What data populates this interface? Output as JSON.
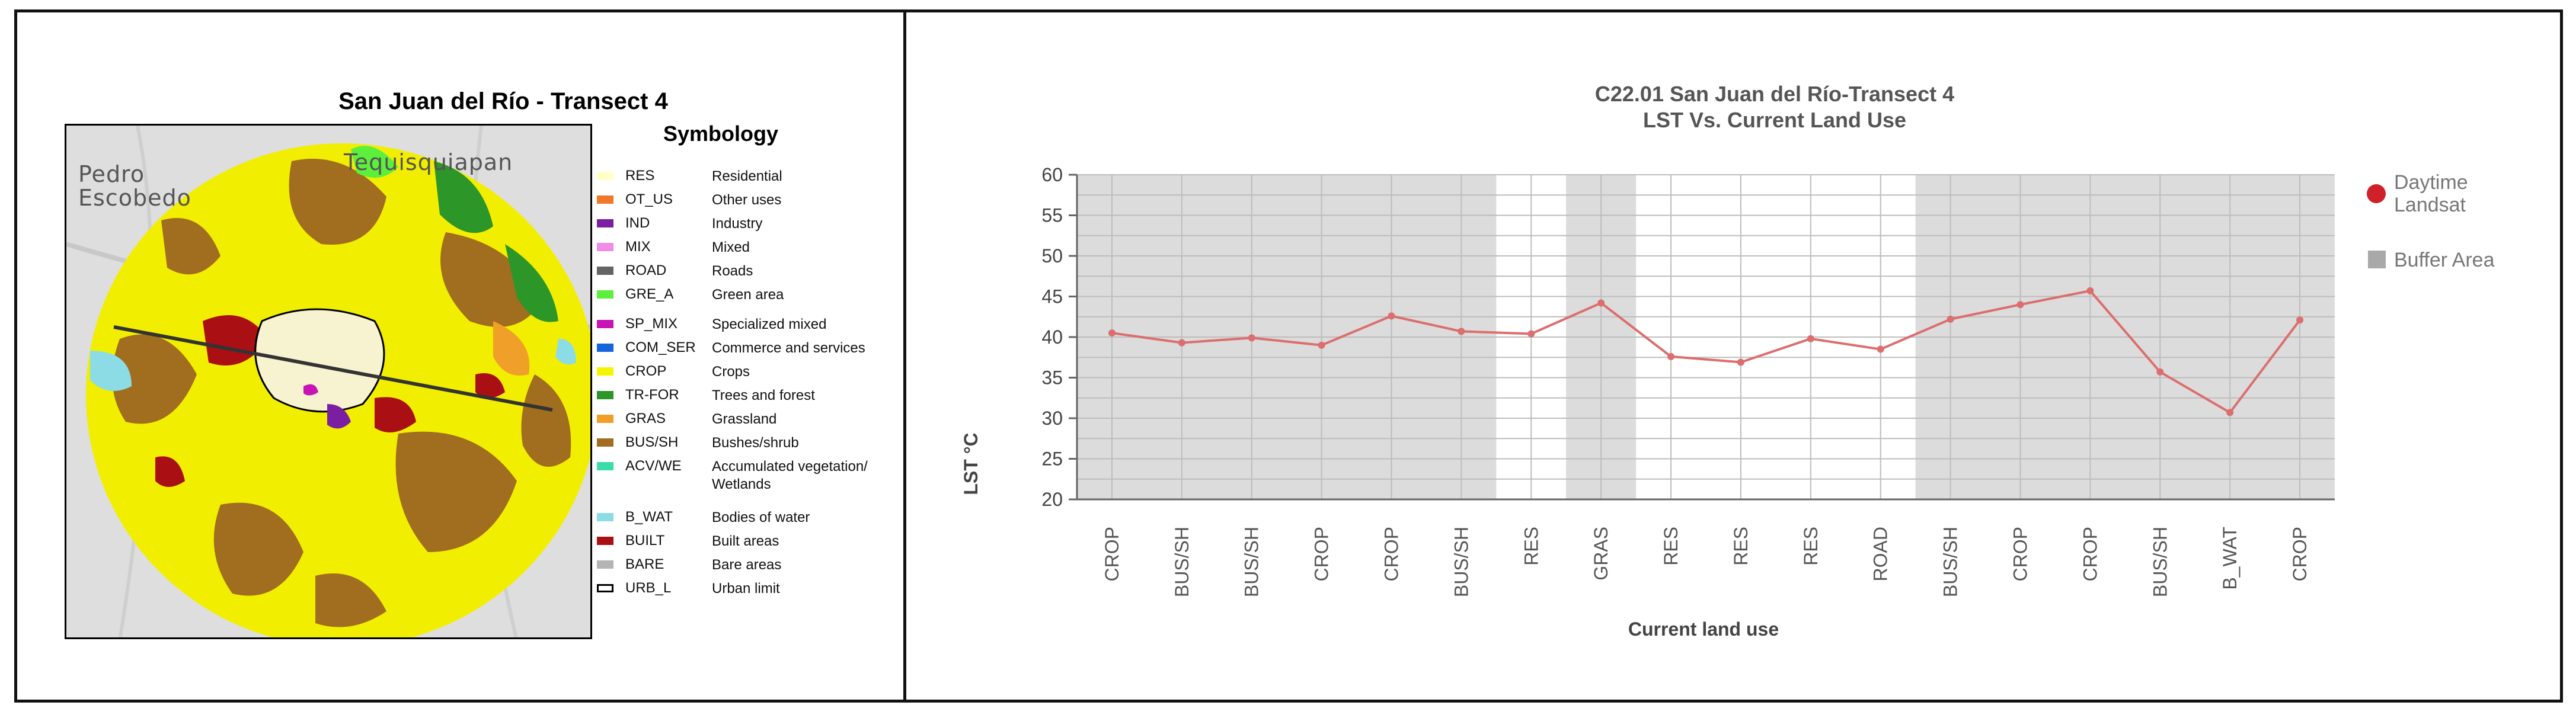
{
  "map": {
    "title": "San Juan del Río - Transect 4",
    "places": [
      "Pedro\nEscobedo",
      "Tequisquiapan"
    ],
    "legend_title": "Symbology",
    "legend": [
      {
        "code": "RES",
        "name": "Residential",
        "color": "#ffffc8"
      },
      {
        "code": "OT_US",
        "name": "Other uses",
        "color": "#f07828"
      },
      {
        "code": "IND",
        "name": "Industry",
        "color": "#7a1fa2"
      },
      {
        "code": "MIX",
        "name": "Mixed",
        "color": "#f08ce6"
      },
      {
        "code": "ROAD",
        "name": "Roads",
        "color": "#646464"
      },
      {
        "code": "GRE_A",
        "name": "Green area",
        "color": "#5cf03c"
      },
      {
        "code": "SP_MIX",
        "name": "Specialized mixed",
        "color": "#c814b4"
      },
      {
        "code": "COM_SER",
        "name": "Commerce and services",
        "color": "#1464dc"
      },
      {
        "code": "CROP",
        "name": "Crops",
        "color": "#f5f500"
      },
      {
        "code": "TR-FOR",
        "name": "Trees and forest",
        "color": "#2c9628"
      },
      {
        "code": "GRAS",
        "name": "Grassland",
        "color": "#f0a028"
      },
      {
        "code": "BUS/SH",
        "name": "Bushes/shrub",
        "color": "#a06e1e"
      },
      {
        "code": "ACV/WE",
        "name": "Accumulated vegetation/ Wetlands",
        "color": "#3cdcaa"
      },
      {
        "code": "B_WAT",
        "name": "Bodies of water",
        "color": "#8cdce6"
      },
      {
        "code": "BUILT",
        "name": "Built areas",
        "color": "#aa0f14"
      },
      {
        "code": "BARE",
        "name": "Bare areas",
        "color": "#b4b4b4"
      },
      {
        "code": "URB_L",
        "name": "Urban limit",
        "color": "#ffffff"
      }
    ]
  },
  "chart_data": {
    "type": "line",
    "title": "C22.01 San Juan del Río-Transect 4",
    "subtitle": "LST Vs. Current Land Use",
    "xlabel": "Current land use",
    "ylabel": "LST °C",
    "ylim": [
      20,
      60
    ],
    "yticks": [
      20,
      25,
      30,
      35,
      40,
      45,
      50,
      55,
      60
    ],
    "grid": true,
    "legend_position": "right",
    "series_color": "#d0202a",
    "line_color": "#dc6e6e",
    "buffer_color": "#a9a9a9",
    "categories": [
      "CROP",
      "BUS/SH",
      "BUS/SH",
      "CROP",
      "CROP",
      "BUS/SH",
      "RES",
      "GRAS",
      "RES",
      "RES",
      "RES",
      "ROAD",
      "BUS/SH",
      "CROP",
      "CROP",
      "BUS/SH",
      "B_WAT",
      "CROP"
    ],
    "series": [
      {
        "name": "Daytime Landsat",
        "values": [
          40.5,
          39.3,
          39.9,
          39.0,
          42.6,
          40.7,
          40.4,
          44.2,
          37.6,
          36.9,
          39.8,
          38.5,
          42.2,
          44.0,
          45.7,
          35.7,
          30.7,
          42.1
        ]
      }
    ],
    "buffer_area": {
      "name": "Buffer Area",
      "ranges": [
        [
          -0.5,
          5.5
        ],
        [
          6.5,
          7.5
        ],
        [
          11.5,
          17.5
        ]
      ]
    }
  }
}
